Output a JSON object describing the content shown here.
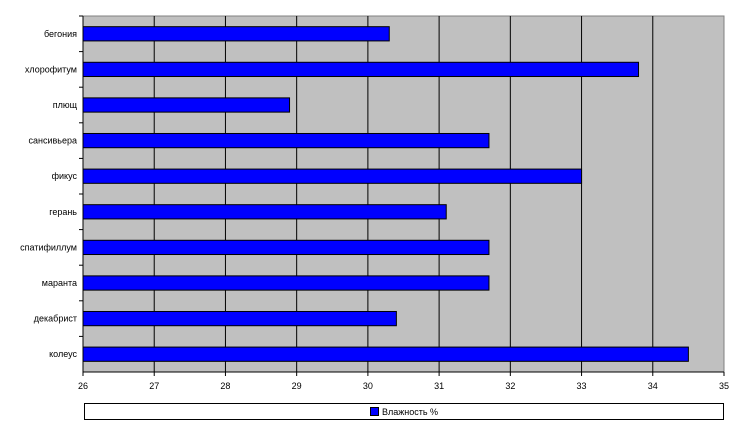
{
  "chart_data": {
    "type": "bar",
    "orientation": "horizontal",
    "categories": [
      "бегония",
      "хлорофитум",
      "плющ",
      "сансивьера",
      "фикус",
      "герань",
      "спатифиллум",
      "маранта",
      "декабрист",
      "колеус"
    ],
    "series": [
      {
        "name": "Влажность %",
        "values": [
          30.3,
          33.8,
          28.9,
          31.7,
          33.0,
          31.1,
          31.7,
          31.7,
          30.4,
          34.5
        ],
        "color": "#0000ff"
      }
    ],
    "xlim": [
      26,
      35
    ],
    "xticks": [
      "26",
      "27",
      "28",
      "29",
      "30",
      "31",
      "32",
      "33",
      "34",
      "35"
    ],
    "grid": true,
    "plot_background": "#c0c0c0",
    "legend_position": "bottom"
  }
}
